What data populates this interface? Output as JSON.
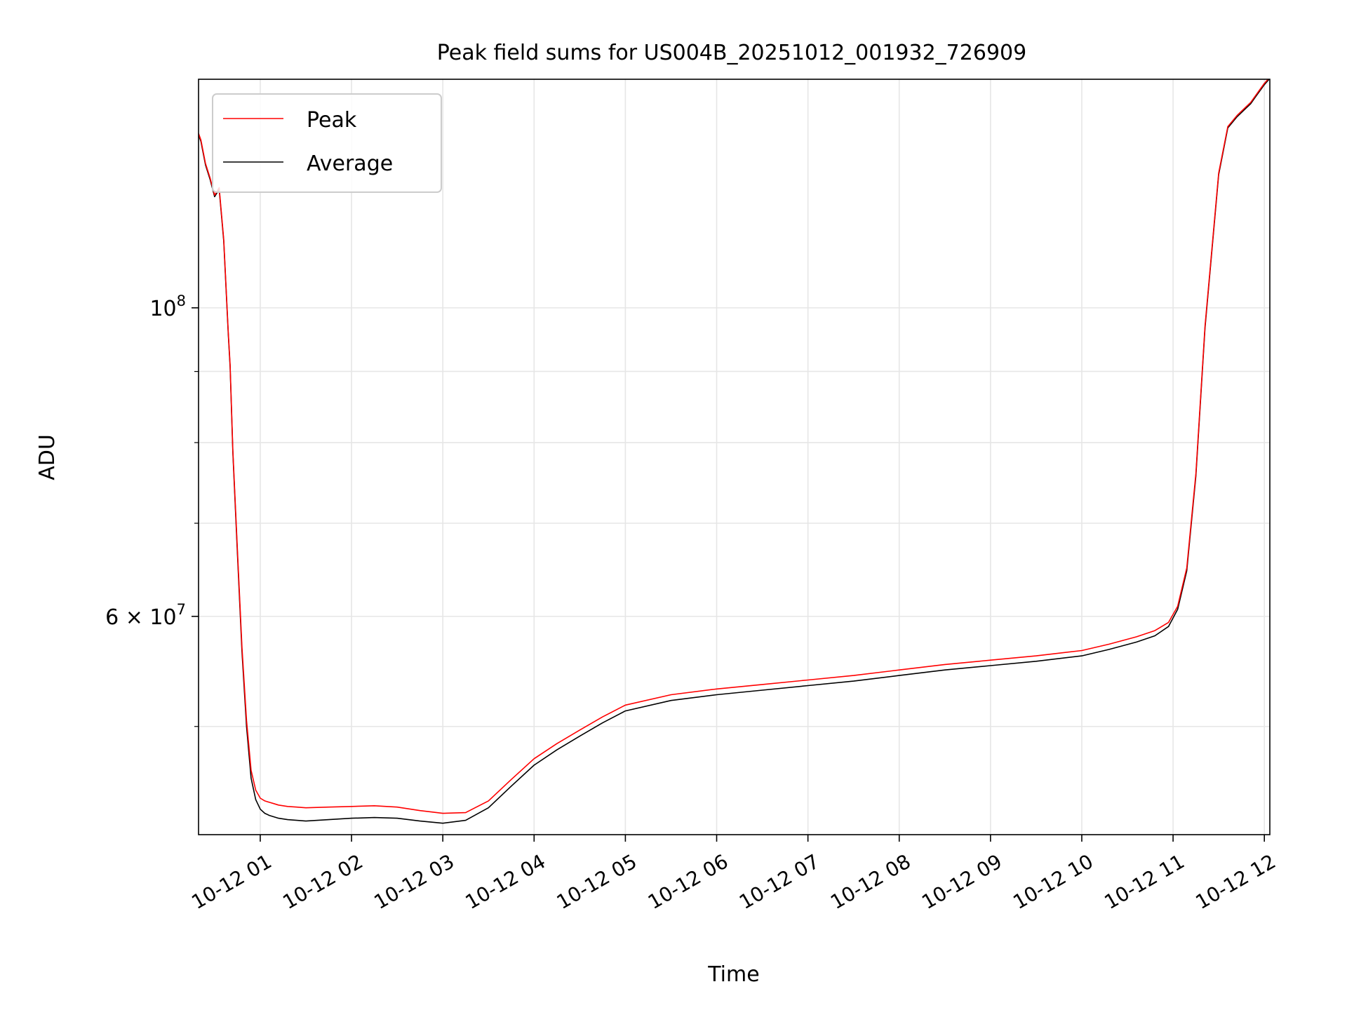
{
  "chart_data": {
    "type": "line",
    "title": "Peak field sums for US004B_20251012_001932_726909",
    "xlabel": "Time",
    "ylabel": "ADU",
    "yscale": "log",
    "grid": true,
    "legend_position": "upper-left",
    "xlim_hours": [
      0.324,
      12.06
    ],
    "ylim": [
      41800000,
      146000000
    ],
    "x_ticks": [
      {
        "hour": 1,
        "label": "10-12 01"
      },
      {
        "hour": 2,
        "label": "10-12 02"
      },
      {
        "hour": 3,
        "label": "10-12 03"
      },
      {
        "hour": 4,
        "label": "10-12 04"
      },
      {
        "hour": 5,
        "label": "10-12 05"
      },
      {
        "hour": 6,
        "label": "10-12 06"
      },
      {
        "hour": 7,
        "label": "10-12 07"
      },
      {
        "hour": 8,
        "label": "10-12 08"
      },
      {
        "hour": 9,
        "label": "10-12 09"
      },
      {
        "hour": 10,
        "label": "10-12 10"
      },
      {
        "hour": 11,
        "label": "10-12 11"
      },
      {
        "hour": 12,
        "label": "10-12 12"
      }
    ],
    "y_major_ticks": [
      {
        "value": 60000000,
        "mantissa": "6",
        "exponent": "7"
      },
      {
        "value": 100000000,
        "mantissa": "",
        "exponent": "8"
      }
    ],
    "y_minor_ticks": [
      50000000,
      70000000,
      80000000,
      90000000
    ],
    "series": [
      {
        "name": "Peak",
        "color": "#ff0000",
        "x_hours": [
          0.324,
          0.35,
          0.4,
          0.45,
          0.5,
          0.55,
          0.6,
          0.65,
          0.67,
          0.7,
          0.75,
          0.8,
          0.85,
          0.9,
          0.95,
          1.0,
          1.05,
          1.1,
          1.15,
          1.2,
          1.25,
          1.3,
          1.4,
          1.5,
          1.75,
          2.0,
          2.25,
          2.5,
          2.75,
          3.0,
          3.25,
          3.5,
          3.75,
          4.0,
          4.25,
          4.5,
          4.75,
          5.0,
          5.5,
          6.0,
          6.5,
          7.0,
          7.5,
          8.0,
          8.5,
          9.0,
          9.5,
          10.0,
          10.3,
          10.6,
          10.8,
          10.95,
          11.05,
          11.15,
          11.25,
          11.35,
          11.5,
          11.6,
          11.7,
          11.75,
          11.8,
          11.85,
          11.9,
          11.95,
          12.0,
          12.06
        ],
        "values": [
          133500000,
          132000000,
          127000000,
          124000000,
          120500000,
          122000000,
          112000000,
          96000000,
          91000000,
          79000000,
          67000000,
          57000000,
          50500000,
          46500000,
          45000000,
          44400000,
          44200000,
          44100000,
          44000000,
          43900000,
          43850000,
          43800000,
          43750000,
          43700000,
          43750000,
          43800000,
          43850000,
          43750000,
          43500000,
          43300000,
          43350000,
          44200000,
          45800000,
          47400000,
          48600000,
          49700000,
          50800000,
          51800000,
          52700000,
          53200000,
          53600000,
          54000000,
          54400000,
          54900000,
          55400000,
          55800000,
          56200000,
          56700000,
          57300000,
          58000000,
          58600000,
          59400000,
          61000000,
          65000000,
          76000000,
          97000000,
          125000000,
          135000000,
          137500000,
          138500000,
          139500000,
          140500000,
          142000000,
          143500000,
          145000000,
          146500000
        ]
      },
      {
        "name": "Average",
        "color": "#000000",
        "x_hours": [
          0.324,
          0.35,
          0.4,
          0.45,
          0.5,
          0.55,
          0.6,
          0.65,
          0.67,
          0.7,
          0.75,
          0.8,
          0.85,
          0.9,
          0.95,
          1.0,
          1.05,
          1.1,
          1.15,
          1.2,
          1.25,
          1.3,
          1.4,
          1.5,
          1.75,
          2.0,
          2.25,
          2.5,
          2.75,
          3.0,
          3.25,
          3.5,
          3.75,
          4.0,
          4.25,
          4.5,
          4.75,
          5.0,
          5.5,
          6.0,
          6.5,
          7.0,
          7.5,
          8.0,
          8.5,
          9.0,
          9.5,
          10.0,
          10.3,
          10.6,
          10.8,
          10.95,
          11.05,
          11.15,
          11.25,
          11.35,
          11.5,
          11.6,
          11.7,
          11.75,
          11.8,
          11.85,
          11.9,
          11.95,
          12.0,
          12.06
        ],
        "values": [
          133200000,
          131700000,
          126700000,
          123700000,
          120200000,
          121700000,
          111700000,
          95700000,
          90700000,
          78700000,
          66600000,
          56600000,
          50000000,
          45900000,
          44300000,
          43600000,
          43300000,
          43150000,
          43050000,
          42950000,
          42900000,
          42850000,
          42800000,
          42750000,
          42850000,
          42950000,
          43000000,
          42950000,
          42750000,
          42600000,
          42800000,
          43700000,
          45300000,
          46900000,
          48100000,
          49200000,
          50300000,
          51300000,
          52200000,
          52700000,
          53100000,
          53500000,
          53900000,
          54400000,
          54900000,
          55300000,
          55700000,
          56200000,
          56800000,
          57500000,
          58100000,
          59000000,
          60700000,
          64700000,
          75700000,
          96700000,
          124700000,
          134700000,
          137200000,
          138200000,
          139200000,
          140200000,
          141700000,
          143200000,
          144700000,
          146200000
        ]
      }
    ],
    "legend": [
      {
        "name": "Peak",
        "color": "#ff0000"
      },
      {
        "name": "Average",
        "color": "#000000"
      }
    ]
  }
}
